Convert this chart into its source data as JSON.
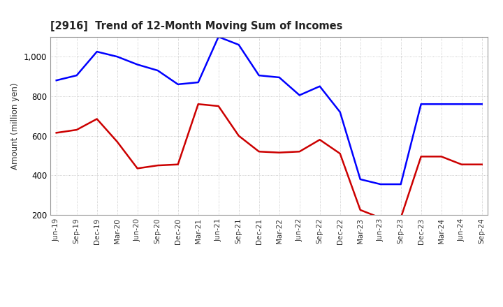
{
  "title": "[2916]  Trend of 12-Month Moving Sum of Incomes",
  "ylabel": "Amount (million yen)",
  "x_labels": [
    "Jun-19",
    "Sep-19",
    "Dec-19",
    "Mar-20",
    "Jun-20",
    "Sep-20",
    "Dec-20",
    "Mar-21",
    "Jun-21",
    "Sep-21",
    "Dec-21",
    "Mar-22",
    "Jun-22",
    "Sep-22",
    "Dec-22",
    "Mar-23",
    "Jun-23",
    "Sep-23",
    "Dec-23",
    "Mar-24",
    "Jun-24",
    "Sep-24"
  ],
  "ordinary_income": [
    880,
    905,
    1025,
    1000,
    960,
    930,
    860,
    870,
    1100,
    1060,
    905,
    895,
    805,
    850,
    720,
    380,
    355,
    355,
    760,
    760,
    760,
    760
  ],
  "net_income": [
    615,
    630,
    685,
    570,
    435,
    450,
    455,
    760,
    750,
    600,
    520,
    515,
    520,
    580,
    510,
    225,
    185,
    185,
    495,
    495,
    455,
    455
  ],
  "ordinary_color": "#0000ff",
  "net_color": "#cc0000",
  "ylim_min": 200,
  "ylim_max": 1100,
  "yticks": [
    200,
    400,
    600,
    800,
    1000
  ],
  "background_color": "#ffffff",
  "grid_color": "#aaaaaa"
}
